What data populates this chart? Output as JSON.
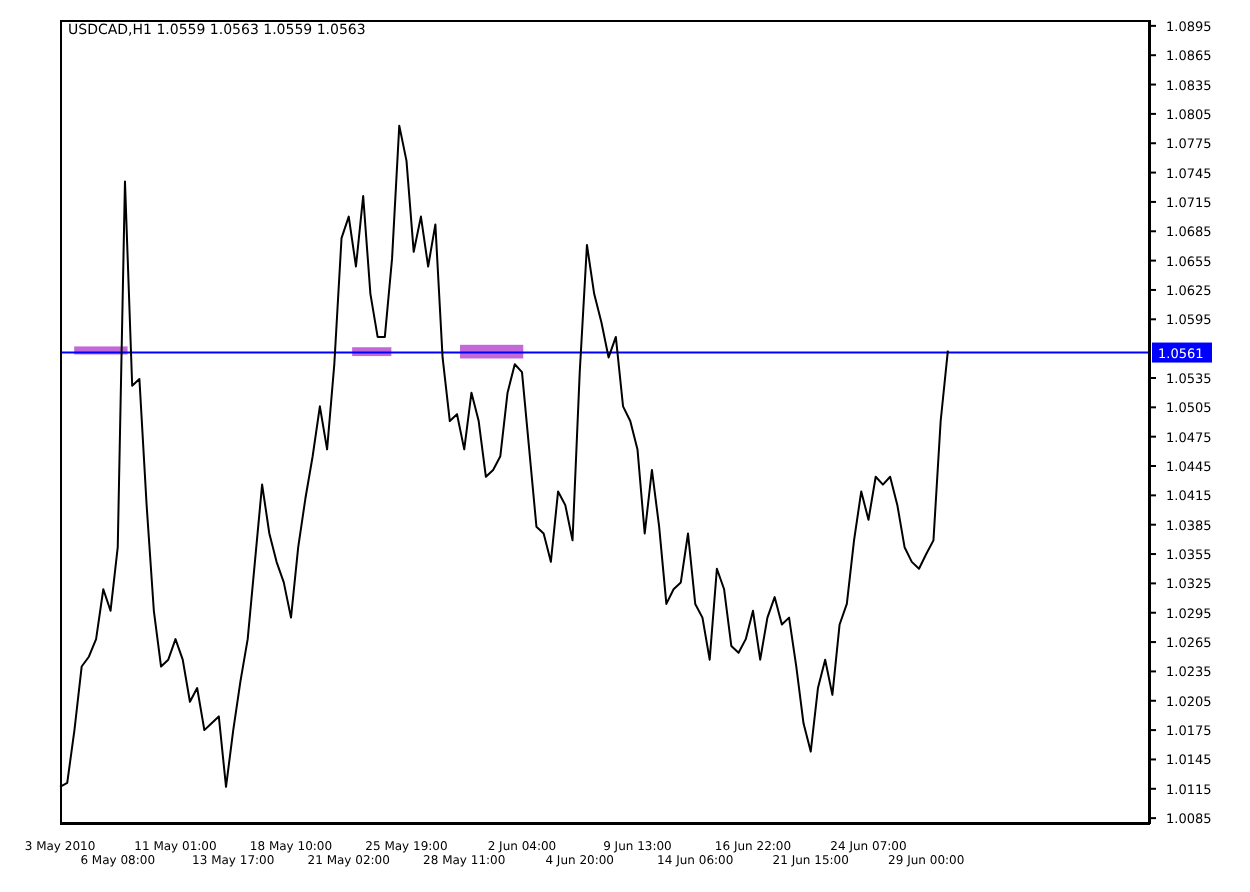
{
  "chart_data": {
    "type": "line",
    "title": "USDCAD,H1  1.0559 1.0563 1.0559 1.0563",
    "categories": [
      "3 May 2010",
      null,
      null,
      null,
      null,
      null,
      null,
      null,
      "6 May 08:00",
      null,
      null,
      null,
      null,
      null,
      null,
      null,
      "11 May 01:00",
      null,
      null,
      null,
      null,
      null,
      null,
      null,
      "13 May 17:00",
      null,
      null,
      null,
      null,
      null,
      null,
      null,
      "18 May 10:00",
      null,
      null,
      null,
      null,
      null,
      null,
      null,
      "21 May 02:00",
      null,
      null,
      null,
      null,
      null,
      null,
      null,
      "25 May 19:00",
      null,
      null,
      null,
      null,
      null,
      null,
      null,
      "28 May 11:00",
      null,
      null,
      null,
      null,
      null,
      null,
      null,
      "2 Jun 04:00",
      null,
      null,
      null,
      null,
      null,
      null,
      null,
      "4 Jun 20:00",
      null,
      null,
      null,
      null,
      null,
      null,
      null,
      "9 Jun 13:00",
      null,
      null,
      null,
      null,
      null,
      null,
      null,
      "14 Jun 06:00",
      null,
      null,
      null,
      null,
      null,
      null,
      null,
      "16 Jun 22:00",
      null,
      null,
      null,
      null,
      null,
      null,
      null,
      "21 Jun 15:00",
      null,
      null,
      null,
      null,
      null,
      null,
      null,
      "24 Jun 07:00",
      null,
      null,
      null,
      null,
      null,
      null,
      null,
      "29 Jun 00:00",
      null,
      null,
      null,
      null,
      null,
      null,
      null,
      null,
      null,
      null,
      null,
      null,
      null,
      null,
      null,
      null,
      null,
      null,
      null,
      null,
      null,
      null,
      null,
      null,
      null,
      null,
      null,
      null,
      null,
      null,
      null
    ],
    "series": [
      {
        "color": "#000000",
        "values": [
          1.0117,
          1.0121,
          1.0175,
          1.024,
          1.025,
          1.0268,
          1.0319,
          1.0297,
          1.0362,
          1.0736,
          1.0527,
          1.0534,
          1.0405,
          1.0297,
          1.024,
          1.0247,
          1.0268,
          1.0247,
          1.0204,
          1.0218,
          1.0175,
          1.0182,
          1.0189,
          1.0117,
          1.0175,
          1.0225,
          1.0268,
          1.0347,
          1.0426,
          1.0376,
          1.0347,
          1.0326,
          1.029,
          1.0362,
          1.0412,
          1.0455,
          1.0506,
          1.0462,
          1.0549,
          1.0678,
          1.07,
          1.0649,
          1.0721,
          1.0621,
          1.0577,
          1.0577,
          1.0657,
          1.0793,
          1.0757,
          1.0664,
          1.07,
          1.0649,
          1.0692,
          1.0556,
          1.0491,
          1.0498,
          1.0462,
          1.052,
          1.0491,
          1.0434,
          1.0441,
          1.0455,
          1.052,
          1.0549,
          1.0541,
          1.0462,
          1.0383,
          1.0376,
          1.0347,
          1.0419,
          1.0405,
          1.0369,
          1.0541,
          1.0671,
          1.0621,
          1.0592,
          1.0556,
          1.0577,
          1.0506,
          1.0491,
          1.0462,
          1.0376,
          1.0441,
          1.0383,
          1.0304,
          1.0319,
          1.0326,
          1.0376,
          1.0304,
          1.029,
          1.0247,
          1.034,
          1.0319,
          1.0261,
          1.0254,
          1.0268,
          1.0297,
          1.0247,
          1.029,
          1.0311,
          1.0283,
          1.029,
          1.024,
          1.0182,
          1.0153,
          1.0218,
          1.0247,
          1.0211,
          1.0283,
          1.0304,
          1.0369,
          1.0419,
          1.039,
          1.0434,
          1.0426,
          1.0434,
          1.0405,
          1.0362,
          1.0347,
          1.034,
          1.0355,
          1.0369,
          1.0491,
          1.0563,
          null,
          null,
          null,
          null,
          null,
          null,
          null,
          null,
          null,
          null,
          null,
          null,
          null,
          null,
          null,
          null,
          null,
          null,
          null,
          null,
          null,
          null,
          null,
          null,
          null,
          null,
          null,
          null
        ]
      }
    ],
    "ylim": [
      1.0079,
      1.0901
    ],
    "yticks": [
      1.0895,
      1.0865,
      1.0835,
      1.0805,
      1.0775,
      1.0745,
      1.0715,
      1.0685,
      1.0655,
      1.0625,
      1.0595,
      1.0535,
      1.0505,
      1.0475,
      1.0445,
      1.0415,
      1.0385,
      1.0355,
      1.0325,
      1.0295,
      1.0265,
      1.0235,
      1.0205,
      1.0175,
      1.0145,
      1.0115,
      1.0085
    ],
    "ref_lines": [
      {
        "axis": "y",
        "value": 1.0561,
        "label": "1.0561",
        "color": "#0000ff"
      }
    ],
    "marker": "none",
    "line_style": "solid"
  }
}
